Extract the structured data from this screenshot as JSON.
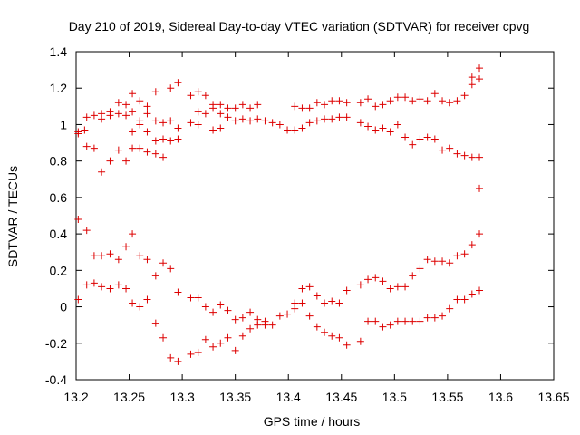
{
  "chart_data": {
    "type": "scatter",
    "title": "Day 210 of 2019, Sidereal Day-to-day VTEC variation (SDTVAR) for receiver cpvg",
    "xlabel": "GPS time / hours",
    "ylabel": "SDTVAR / TECUs",
    "xlim": [
      13.2,
      13.65
    ],
    "ylim": [
      -0.4,
      1.4
    ],
    "xticks": [
      13.2,
      13.25,
      13.3,
      13.35,
      13.4,
      13.45,
      13.5,
      13.55,
      13.6,
      13.65
    ],
    "xtick_labels": [
      "13.2",
      "13.25",
      "13.3",
      "13.35",
      "13.4",
      "13.45",
      "13.5",
      "13.55",
      "13.6",
      "13.65"
    ],
    "yticks": [
      -0.4,
      -0.2,
      0,
      0.2,
      0.4,
      0.6,
      0.8,
      1,
      1.2,
      1.4
    ],
    "ytick_labels": [
      "-0.4",
      "-0.2",
      "0",
      "0.2",
      "0.4",
      "0.6",
      "0.8",
      "1",
      "1.2",
      "1.4"
    ],
    "grid": false,
    "marker": "+",
    "marker_color": "#dd0000",
    "axis_color": "#000000",
    "series": [
      {
        "name": "SDTVAR",
        "points": [
          [
            13.202,
            0.96
          ],
          [
            13.202,
            0.95
          ],
          [
            13.202,
            0.48
          ],
          [
            13.202,
            0.04
          ],
          [
            13.208,
            0.97
          ],
          [
            13.21,
            1.04
          ],
          [
            13.21,
            0.88
          ],
          [
            13.21,
            0.42
          ],
          [
            13.21,
            0.12
          ],
          [
            13.217,
            1.05
          ],
          [
            13.217,
            0.87
          ],
          [
            13.217,
            0.28
          ],
          [
            13.217,
            0.13
          ],
          [
            13.224,
            1.06
          ],
          [
            13.224,
            1.03
          ],
          [
            13.224,
            0.74
          ],
          [
            13.224,
            0.28
          ],
          [
            13.224,
            0.11
          ],
          [
            13.232,
            1.07
          ],
          [
            13.232,
            1.05
          ],
          [
            13.232,
            0.8
          ],
          [
            13.232,
            0.29
          ],
          [
            13.232,
            0.1
          ],
          [
            13.24,
            1.12
          ],
          [
            13.24,
            1.06
          ],
          [
            13.24,
            0.86
          ],
          [
            13.24,
            0.26
          ],
          [
            13.24,
            0.12
          ],
          [
            13.247,
            1.11
          ],
          [
            13.247,
            1.05
          ],
          [
            13.247,
            0.8
          ],
          [
            13.247,
            0.33
          ],
          [
            13.247,
            0.1
          ],
          [
            13.253,
            1.17
          ],
          [
            13.253,
            1.07
          ],
          [
            13.253,
            0.96
          ],
          [
            13.253,
            0.87
          ],
          [
            13.253,
            0.4
          ],
          [
            13.253,
            0.02
          ],
          [
            13.26,
            1.13
          ],
          [
            13.26,
            1.02
          ],
          [
            13.26,
            1.0
          ],
          [
            13.26,
            0.87
          ],
          [
            13.26,
            0.28
          ],
          [
            13.26,
            0.0
          ],
          [
            13.267,
            1.1
          ],
          [
            13.267,
            1.06
          ],
          [
            13.267,
            0.96
          ],
          [
            13.267,
            0.85
          ],
          [
            13.267,
            0.26
          ],
          [
            13.267,
            0.04
          ],
          [
            13.275,
            1.18
          ],
          [
            13.275,
            1.02
          ],
          [
            13.275,
            0.91
          ],
          [
            13.275,
            0.84
          ],
          [
            13.275,
            0.17
          ],
          [
            13.275,
            -0.09
          ],
          [
            13.282,
            1.01
          ],
          [
            13.282,
            0.92
          ],
          [
            13.282,
            0.82
          ],
          [
            13.282,
            0.24
          ],
          [
            13.282,
            -0.17
          ],
          [
            13.289,
            1.2
          ],
          [
            13.289,
            1.02
          ],
          [
            13.289,
            0.91
          ],
          [
            13.289,
            0.21
          ],
          [
            13.289,
            -0.28
          ],
          [
            13.296,
            1.23
          ],
          [
            13.296,
            0.98
          ],
          [
            13.296,
            0.92
          ],
          [
            13.296,
            0.08
          ],
          [
            13.296,
            -0.3
          ],
          [
            13.308,
            1.16
          ],
          [
            13.308,
            1.01
          ],
          [
            13.308,
            0.05
          ],
          [
            13.308,
            -0.26
          ],
          [
            13.315,
            1.18
          ],
          [
            13.315,
            1.07
          ],
          [
            13.315,
            1.0
          ],
          [
            13.315,
            0.05
          ],
          [
            13.315,
            -0.25
          ],
          [
            13.322,
            1.16
          ],
          [
            13.322,
            1.06
          ],
          [
            13.322,
            0.0
          ],
          [
            13.322,
            -0.18
          ],
          [
            13.329,
            1.11
          ],
          [
            13.329,
            1.09
          ],
          [
            13.329,
            0.97
          ],
          [
            13.329,
            -0.03
          ],
          [
            13.329,
            -0.22
          ],
          [
            13.336,
            1.11
          ],
          [
            13.336,
            1.06
          ],
          [
            13.336,
            0.98
          ],
          [
            13.336,
            0.01
          ],
          [
            13.336,
            -0.2
          ],
          [
            13.343,
            1.09
          ],
          [
            13.343,
            1.04
          ],
          [
            13.343,
            -0.02
          ],
          [
            13.343,
            -0.17
          ],
          [
            13.35,
            1.09
          ],
          [
            13.35,
            1.02
          ],
          [
            13.35,
            -0.07
          ],
          [
            13.35,
            -0.24
          ],
          [
            13.357,
            1.11
          ],
          [
            13.357,
            1.03
          ],
          [
            13.357,
            -0.06
          ],
          [
            13.357,
            -0.16
          ],
          [
            13.364,
            1.09
          ],
          [
            13.364,
            1.02
          ],
          [
            13.364,
            -0.03
          ],
          [
            13.364,
            -0.12
          ],
          [
            13.371,
            1.11
          ],
          [
            13.371,
            1.03
          ],
          [
            13.371,
            -0.07
          ],
          [
            13.371,
            -0.1
          ],
          [
            13.378,
            1.02
          ],
          [
            13.378,
            -0.08
          ],
          [
            13.378,
            -0.1
          ],
          [
            13.385,
            1.01
          ],
          [
            13.385,
            -0.1
          ],
          [
            13.392,
            1.0
          ],
          [
            13.392,
            -0.05
          ],
          [
            13.399,
            0.97
          ],
          [
            13.399,
            -0.04
          ],
          [
            13.406,
            1.1
          ],
          [
            13.406,
            0.97
          ],
          [
            13.406,
            0.02
          ],
          [
            13.406,
            -0.01
          ],
          [
            13.413,
            1.09
          ],
          [
            13.413,
            0.98
          ],
          [
            13.413,
            0.1
          ],
          [
            13.413,
            0.02
          ],
          [
            13.42,
            1.09
          ],
          [
            13.42,
            1.01
          ],
          [
            13.42,
            0.11
          ],
          [
            13.42,
            -0.05
          ],
          [
            13.427,
            1.12
          ],
          [
            13.427,
            1.02
          ],
          [
            13.427,
            0.06
          ],
          [
            13.427,
            -0.11
          ],
          [
            13.434,
            1.11
          ],
          [
            13.434,
            1.03
          ],
          [
            13.434,
            0.02
          ],
          [
            13.434,
            -0.14
          ],
          [
            13.441,
            1.13
          ],
          [
            13.441,
            1.03
          ],
          [
            13.441,
            0.03
          ],
          [
            13.441,
            -0.16
          ],
          [
            13.448,
            1.13
          ],
          [
            13.448,
            1.04
          ],
          [
            13.448,
            0.02
          ],
          [
            13.448,
            -0.17
          ],
          [
            13.455,
            1.12
          ],
          [
            13.455,
            1.04
          ],
          [
            13.455,
            0.09
          ],
          [
            13.455,
            -0.21
          ],
          [
            13.468,
            1.12
          ],
          [
            13.468,
            1.01
          ],
          [
            13.468,
            0.12
          ],
          [
            13.468,
            -0.19
          ],
          [
            13.475,
            1.14
          ],
          [
            13.475,
            0.99
          ],
          [
            13.475,
            0.15
          ],
          [
            13.475,
            -0.08
          ],
          [
            13.482,
            1.1
          ],
          [
            13.482,
            0.97
          ],
          [
            13.482,
            0.16
          ],
          [
            13.482,
            -0.08
          ],
          [
            13.489,
            1.11
          ],
          [
            13.489,
            0.98
          ],
          [
            13.489,
            0.14
          ],
          [
            13.489,
            -0.11
          ],
          [
            13.496,
            1.13
          ],
          [
            13.496,
            0.96
          ],
          [
            13.496,
            0.1
          ],
          [
            13.496,
            -0.1
          ],
          [
            13.503,
            1.15
          ],
          [
            13.503,
            1.0
          ],
          [
            13.503,
            0.11
          ],
          [
            13.503,
            -0.08
          ],
          [
            13.51,
            1.15
          ],
          [
            13.51,
            0.93
          ],
          [
            13.51,
            0.11
          ],
          [
            13.51,
            -0.08
          ],
          [
            13.517,
            1.13
          ],
          [
            13.517,
            0.89
          ],
          [
            13.517,
            0.17
          ],
          [
            13.517,
            -0.08
          ],
          [
            13.524,
            1.14
          ],
          [
            13.524,
            0.92
          ],
          [
            13.524,
            0.21
          ],
          [
            13.524,
            -0.08
          ],
          [
            13.531,
            1.13
          ],
          [
            13.531,
            0.93
          ],
          [
            13.531,
            0.26
          ],
          [
            13.531,
            -0.06
          ],
          [
            13.538,
            1.17
          ],
          [
            13.538,
            0.92
          ],
          [
            13.538,
            0.25
          ],
          [
            13.538,
            -0.06
          ],
          [
            13.545,
            1.13
          ],
          [
            13.545,
            0.86
          ],
          [
            13.545,
            0.25
          ],
          [
            13.545,
            -0.05
          ],
          [
            13.552,
            1.12
          ],
          [
            13.552,
            0.87
          ],
          [
            13.552,
            0.24
          ],
          [
            13.552,
            -0.01
          ],
          [
            13.559,
            1.13
          ],
          [
            13.559,
            0.84
          ],
          [
            13.559,
            0.28
          ],
          [
            13.559,
            0.04
          ],
          [
            13.566,
            1.16
          ],
          [
            13.566,
            0.83
          ],
          [
            13.566,
            0.29
          ],
          [
            13.566,
            0.04
          ],
          [
            13.573,
            1.26
          ],
          [
            13.573,
            1.22
          ],
          [
            13.573,
            0.82
          ],
          [
            13.573,
            0.34
          ],
          [
            13.573,
            0.07
          ],
          [
            13.58,
            1.31
          ],
          [
            13.58,
            1.25
          ],
          [
            13.58,
            0.82
          ],
          [
            13.58,
            0.65
          ],
          [
            13.58,
            0.4
          ],
          [
            13.58,
            0.09
          ]
        ]
      }
    ]
  }
}
